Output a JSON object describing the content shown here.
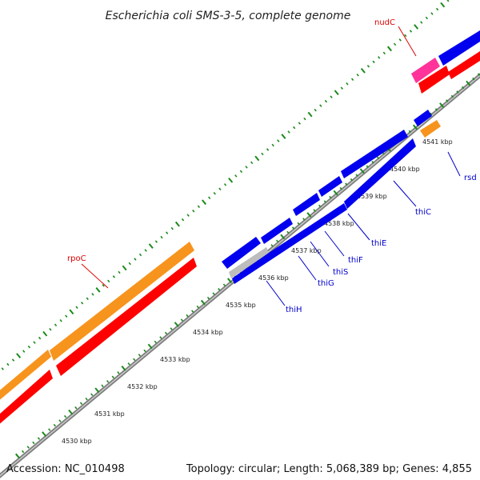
{
  "title": "Escherichia coli SMS-3-5, complete genome",
  "footer": {
    "accession": "Accession: NC_010498",
    "summary": "Topology: circular; Length: 5,068,389 bp; Genes: 4,855"
  },
  "ticks": [
    "4530 kbp",
    "4531 kbp",
    "4532 kbp",
    "4533 kbp",
    "4534 kbp",
    "4535 kbp",
    "4536 kbp",
    "4537 kbp",
    "4538 kbp",
    "4539 kbp",
    "4540 kbp",
    "4541 kbp"
  ],
  "genes": {
    "rpoC": "rpoC",
    "nudC": "nudC",
    "rsd": "rsd",
    "thiC": "thiC",
    "thiE": "thiE",
    "thiF": "thiF",
    "thiS": "thiS",
    "thiG": "thiG",
    "thiH": "thiH"
  },
  "colors": {
    "cds_orange": "#f7941d",
    "cds_red": "#ff0000",
    "cds_blue": "#0000ee",
    "cds_magenta": "#ff3399",
    "cds_gray": "#bdbdbd",
    "backbone": "#8c8c8c",
    "tick_green": "#1a8a1a",
    "label_red": "#dd0000",
    "label_blue": "#0000cc"
  }
}
